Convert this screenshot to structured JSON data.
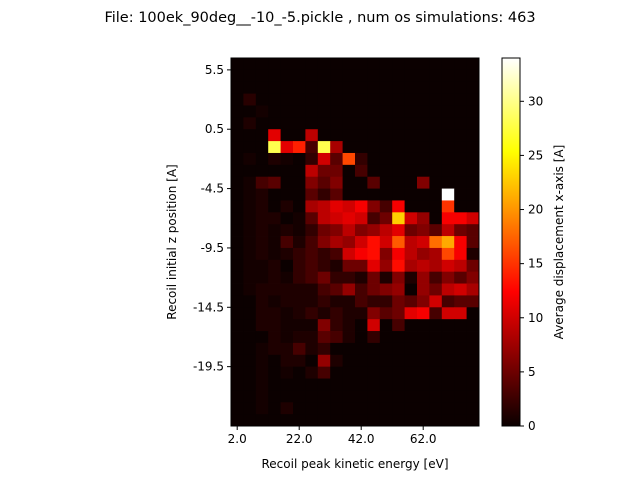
{
  "chart_data": {
    "type": "heatmap",
    "title": "File: 100ek_90deg__-10_-5.pickle , num os simulations: 463",
    "xlabel": "Recoil peak kinetic energy [eV]",
    "ylabel": "Recoil initial z position [A]",
    "colorbar_label": "Average displacement x-axis [A]",
    "colormap": "hot",
    "xlim": [
      0,
      80
    ],
    "ylim": [
      -24.5,
      6.5
    ],
    "x_ticks": [
      2,
      22,
      42,
      62
    ],
    "x_tick_labels": [
      "2.0",
      "22.0",
      "42.0",
      "62.0"
    ],
    "y_ticks": [
      5.5,
      0.5,
      -4.5,
      -9.5,
      -14.5,
      -19.5
    ],
    "y_tick_labels": [
      "5.5",
      "0.5",
      "-4.5",
      "-9.5",
      "-14.5",
      "-19.5"
    ],
    "colorbar_range": [
      0,
      34
    ],
    "colorbar_ticks": [
      0,
      5,
      10,
      15,
      20,
      25,
      30
    ],
    "x_bin_edges_start": 0,
    "x_bin_width": 4,
    "x_bin_count": 20,
    "y_bin_edges_start": -24.5,
    "y_bin_width": 1,
    "y_bin_count": 31,
    "cells_note": "rows listed from top (z=6.5) to bottom (z=-24.5); each row has 20 values, one per energy bin",
    "cells": [
      [
        0,
        0,
        0,
        0,
        0,
        0,
        0,
        0,
        0,
        0,
        0,
        0,
        0,
        0,
        0,
        0,
        0,
        0,
        0,
        0
      ],
      [
        0,
        0,
        0,
        0,
        0,
        0,
        0,
        0,
        0,
        0,
        0,
        0,
        0,
        0,
        0,
        0,
        0,
        0,
        0,
        0
      ],
      [
        0,
        0,
        0,
        0,
        0,
        0,
        0,
        0,
        0,
        0,
        0,
        0,
        0,
        0,
        0,
        0,
        0,
        0,
        0,
        0
      ],
      [
        0,
        1.5,
        0,
        0,
        0,
        0,
        0,
        0,
        0,
        0,
        0,
        0,
        0,
        0,
        0,
        0,
        0,
        0,
        0,
        0
      ],
      [
        0,
        0,
        0.5,
        0,
        0,
        0,
        0,
        0,
        0,
        0,
        0,
        0,
        0,
        0,
        0,
        0,
        0,
        0,
        0,
        0
      ],
      [
        0,
        1,
        0,
        0,
        0,
        0,
        0,
        0,
        0,
        0,
        0,
        0,
        0,
        0,
        0,
        0,
        0,
        0,
        0,
        0
      ],
      [
        0,
        0,
        0,
        11,
        0,
        0,
        9,
        0,
        0,
        0,
        0,
        0,
        0,
        0,
        0,
        0,
        0,
        0,
        0,
        0
      ],
      [
        0,
        0,
        0,
        28,
        11,
        14,
        3,
        28,
        8,
        0,
        0,
        0,
        0,
        0,
        0,
        0,
        0,
        0,
        0,
        0
      ],
      [
        0,
        0.5,
        0,
        1,
        0.5,
        0,
        2,
        10,
        4,
        16,
        2,
        0,
        0,
        0,
        0,
        0,
        0,
        0,
        0,
        0
      ],
      [
        0,
        0,
        0,
        0,
        0,
        0,
        9,
        5,
        5,
        0,
        3,
        0,
        0,
        0,
        0,
        0,
        0,
        0,
        0,
        0
      ],
      [
        0,
        0.5,
        3,
        4,
        0,
        0,
        6,
        4,
        6,
        0,
        0,
        4,
        0,
        0,
        0,
        6,
        0,
        0,
        0,
        0
      ],
      [
        0,
        0.5,
        1,
        0,
        0,
        0,
        4,
        2,
        4,
        0,
        0,
        0,
        0,
        0,
        0,
        0,
        0,
        34,
        0,
        0
      ],
      [
        0,
        0.5,
        1,
        0,
        1,
        0,
        8,
        9,
        11,
        10,
        12,
        6,
        3,
        12,
        0,
        0,
        0,
        15,
        0,
        0
      ],
      [
        0,
        0.5,
        1,
        1,
        0,
        0.5,
        4,
        9,
        10,
        11,
        10,
        3,
        5,
        23,
        10,
        7,
        0,
        12,
        12,
        10
      ],
      [
        0,
        0.5,
        1,
        0.5,
        1,
        0.5,
        2,
        5,
        6,
        9,
        6,
        7,
        9,
        11,
        5,
        6,
        4,
        9,
        5,
        4
      ],
      [
        0,
        0.5,
        1,
        0.5,
        3,
        1,
        3,
        6,
        8,
        7,
        10,
        13,
        10,
        17,
        9,
        10,
        18,
        21,
        12,
        4
      ],
      [
        0,
        0.5,
        1,
        0.5,
        1,
        2,
        3,
        2,
        3,
        10,
        12,
        13,
        6,
        12,
        9,
        7,
        8,
        16,
        12,
        1
      ],
      [
        0,
        0.5,
        0.5,
        1,
        0,
        2,
        3,
        2,
        1,
        5,
        5,
        11,
        7,
        13,
        8,
        9,
        8,
        10,
        9,
        5
      ],
      [
        0,
        0.5,
        0.5,
        1,
        0.5,
        2,
        3,
        5,
        2,
        2,
        1,
        5,
        1,
        6,
        1,
        7,
        3,
        6,
        4,
        6
      ],
      [
        0,
        0.5,
        1,
        1,
        1,
        1,
        1,
        3,
        4,
        7,
        3,
        5,
        6,
        7,
        0,
        7,
        5,
        9,
        10,
        8
      ],
      [
        0,
        0,
        1,
        0.5,
        1,
        1,
        1,
        2,
        1,
        1,
        3,
        2,
        2,
        5,
        4,
        6,
        10,
        3,
        4,
        4
      ],
      [
        0,
        0,
        1,
        1,
        0.5,
        1,
        2,
        1,
        2,
        1,
        1,
        6,
        4,
        5,
        11,
        12,
        3,
        10,
        10,
        0
      ],
      [
        0,
        0,
        1,
        1,
        0.5,
        0.5,
        0.5,
        6,
        2,
        1,
        0,
        10,
        0,
        3,
        0,
        0,
        0,
        0,
        0,
        0
      ],
      [
        0,
        0,
        0,
        1,
        0.5,
        1,
        1,
        4,
        3,
        1,
        0,
        2,
        0,
        0,
        0,
        0,
        0,
        0,
        0,
        0
      ],
      [
        0,
        0,
        0.5,
        1,
        1,
        3,
        1,
        2,
        0,
        0,
        0,
        0,
        0,
        0,
        0,
        0,
        0,
        0,
        0,
        0
      ],
      [
        0,
        0,
        0.5,
        0,
        1,
        1,
        0,
        7,
        1,
        0,
        0,
        0,
        0,
        0,
        0,
        0,
        0,
        0,
        0,
        0
      ],
      [
        0,
        0,
        0.5,
        0,
        0.5,
        0,
        1,
        3,
        0,
        0,
        0,
        0,
        0,
        0,
        0,
        0,
        0,
        0,
        0,
        0
      ],
      [
        0,
        0,
        0.5,
        0,
        0,
        0,
        0,
        0,
        0,
        0,
        0,
        0,
        0,
        0,
        0,
        0,
        0,
        0,
        0,
        0
      ],
      [
        0,
        0,
        0.5,
        0,
        0,
        0,
        0,
        0,
        0,
        0,
        0,
        0,
        0,
        0,
        0,
        0,
        0,
        0,
        0,
        0
      ],
      [
        0,
        0,
        0.5,
        0,
        1,
        0,
        0,
        0,
        0,
        0,
        0,
        0,
        0,
        0,
        0,
        0,
        0,
        0,
        0,
        0
      ],
      [
        0,
        0,
        0,
        0,
        0,
        0,
        0,
        0,
        0,
        0,
        0,
        0,
        0,
        0,
        0,
        0,
        0,
        0,
        0,
        0
      ]
    ]
  }
}
